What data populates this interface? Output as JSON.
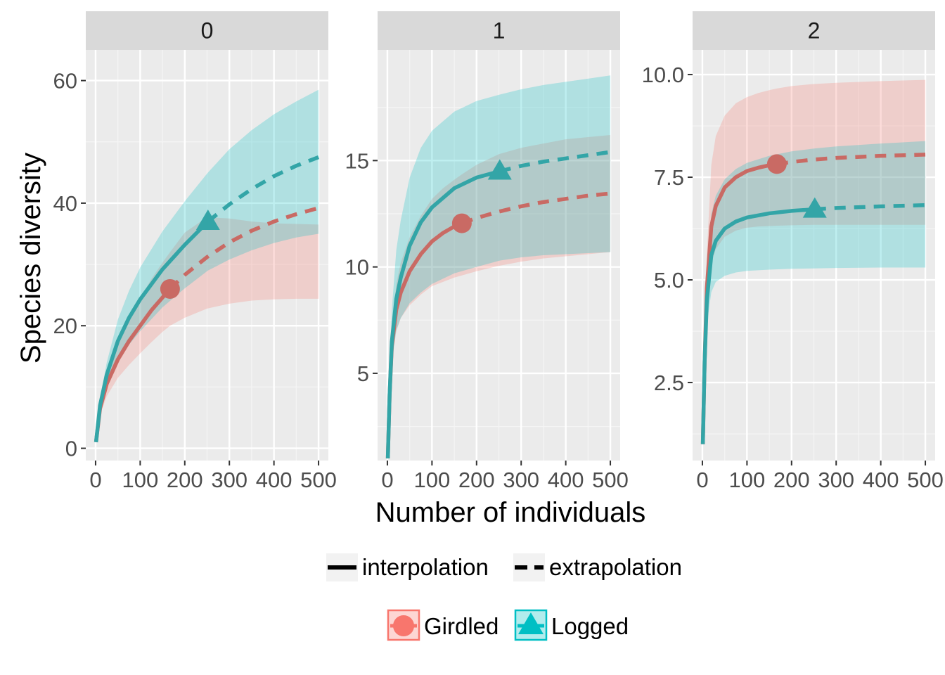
{
  "chart_data": {
    "type": "line",
    "facet_by": "order q",
    "xlabel": "Number of individuals",
    "ylabel": "Species diversity",
    "x_ticks": [
      0,
      100,
      200,
      300,
      400,
      500
    ],
    "x_tick_labels": [
      "0",
      "100",
      "200",
      "300",
      "400",
      "500"
    ],
    "xlim": [
      -22,
      522
    ],
    "grid": true,
    "legend_placement": "bottom",
    "line_legend": {
      "items": [
        {
          "key": "interpolation",
          "label": "interpolation",
          "linetype": "solid"
        },
        {
          "key": "extrapolation",
          "label": "extrapolation",
          "linetype": "dashed"
        }
      ]
    },
    "group_legend": {
      "items": [
        {
          "key": "girdled",
          "label": "Girdled",
          "shape": "circle",
          "color": "#F8766D"
        },
        {
          "key": "logged",
          "label": "Logged",
          "shape": "triangle",
          "color": "#00BFC4"
        }
      ]
    },
    "observed_sample_size": {
      "girdled": 167,
      "logged": 252
    },
    "panels": [
      {
        "strip": "0",
        "ylim": [
          -2,
          65
        ],
        "y_ticks": [
          0,
          20,
          40,
          60
        ],
        "y_tick_labels": [
          "0",
          "20",
          "40",
          "60"
        ],
        "series": [
          {
            "name": "Girdled",
            "x": [
              1,
              10,
              25,
              50,
              75,
              100,
              125,
              150,
              167,
              200,
              250,
              300,
              350,
              400,
              450,
              500
            ],
            "y": [
              1,
              6.5,
              10.5,
              14.5,
              17.5,
              20,
              22.5,
              24.6,
              26,
              28.3,
              31.2,
              33.6,
              35.5,
              37,
              38.2,
              39.2
            ],
            "lower": [
              1,
              5.5,
              8.5,
              11.5,
              13.6,
              15.5,
              17.3,
              19,
              20,
              21.3,
              22.8,
              23.6,
              24.1,
              24.3,
              24.4,
              24.4
            ],
            "upper": [
              1,
              7.8,
              12.5,
              17.3,
              21.2,
              24.5,
              27.6,
              30.3,
              32,
              35.2,
              37.7,
              37.5,
              37,
              36.7,
              36.6,
              36.5
            ]
          },
          {
            "name": "Logged",
            "x": [
              1,
              10,
              25,
              50,
              75,
              100,
              150,
              200,
              252,
              300,
              350,
              400,
              450,
              500
            ],
            "y": [
              1,
              7,
              12,
              17.5,
              21.3,
              24.3,
              29.2,
              33.2,
              37,
              39.8,
              42.3,
              44.4,
              46.1,
              47.5
            ],
            "lower": [
              1,
              6,
              10,
              14,
              16.9,
              19.1,
              23,
              26.1,
              29,
              30.8,
              32.3,
              33.5,
              34.4,
              35
            ],
            "upper": [
              1,
              8,
              14,
              21,
              25.7,
              29.5,
              35.4,
              40.3,
              45,
              48.8,
              51.9,
              54.5,
              56.6,
              58.5
            ]
          }
        ]
      },
      {
        "strip": "1",
        "ylim": [
          0.9,
          20.2
        ],
        "y_ticks": [
          5,
          10,
          15
        ],
        "y_tick_labels": [
          "5",
          "10",
          "15"
        ],
        "series": [
          {
            "name": "Girdled",
            "x": [
              1,
              5,
              10,
              20,
              30,
              50,
              75,
              100,
              125,
              150,
              167,
              200,
              250,
              300,
              350,
              400,
              450,
              500
            ],
            "y": [
              1,
              4,
              6.3,
              8,
              8.8,
              9.8,
              10.6,
              11.2,
              11.6,
              11.9,
              12.05,
              12.3,
              12.6,
              12.85,
              13.05,
              13.2,
              13.35,
              13.45
            ],
            "lower": [
              1,
              3.6,
              5.7,
              7,
              7.6,
              8.2,
              8.7,
              9.1,
              9.3,
              9.5,
              9.6,
              9.8,
              10.05,
              10.25,
              10.4,
              10.5,
              10.6,
              10.7
            ],
            "upper": [
              1,
              4.4,
              7,
              9.2,
              10.2,
              11.4,
              12.4,
              13.2,
              13.7,
              14.1,
              14.35,
              14.8,
              15.3,
              15.6,
              15.8,
              16,
              16.1,
              16.2
            ]
          },
          {
            "name": "Logged",
            "x": [
              1,
              5,
              10,
              20,
              30,
              50,
              75,
              100,
              150,
              200,
              252,
              300,
              350,
              400,
              450,
              500
            ],
            "y": [
              1,
              4,
              6.5,
              8.5,
              9.5,
              11,
              12.1,
              12.8,
              13.7,
              14.2,
              14.5,
              14.75,
              14.95,
              15.1,
              15.25,
              15.4
            ],
            "lower": [
              1,
              3.5,
              5.5,
              7,
              7.6,
              8.3,
              8.8,
              9.2,
              9.7,
              10,
              10.3,
              10.45,
              10.55,
              10.6,
              10.65,
              10.7
            ],
            "upper": [
              1,
              4.8,
              8,
              10.8,
              12.2,
              14.2,
              15.6,
              16.4,
              17.3,
              17.8,
              18.1,
              18.35,
              18.55,
              18.7,
              18.85,
              19
            ]
          }
        ]
      },
      {
        "strip": "2",
        "ylim": [
          0.6,
          10.6
        ],
        "y_ticks": [
          2.5,
          5.0,
          7.5,
          10.0
        ],
        "y_tick_labels": [
          "2.5",
          "5.0",
          "7.5",
          "10.0"
        ],
        "series": [
          {
            "name": "Girdled",
            "x": [
              1,
              5,
              10,
              20,
              30,
              50,
              75,
              100,
              125,
              150,
              167,
              200,
              250,
              300,
              400,
              500
            ],
            "y": [
              1,
              3,
              4.8,
              6.3,
              6.8,
              7.25,
              7.5,
              7.65,
              7.73,
              7.79,
              7.82,
              7.87,
              7.93,
              7.97,
              8.02,
              8.05
            ],
            "lower": [
              1,
              2.8,
              4.3,
              5.4,
              5.75,
              6.05,
              6.2,
              6.27,
              6.3,
              6.31,
              6.32,
              6.33,
              6.34,
              6.34,
              6.34,
              6.34
            ],
            "upper": [
              1,
              3.3,
              5.6,
              7.8,
              8.5,
              9,
              9.3,
              9.45,
              9.55,
              9.62,
              9.66,
              9.72,
              9.77,
              9.8,
              9.84,
              9.87
            ]
          },
          {
            "name": "Logged",
            "x": [
              1,
              5,
              10,
              20,
              30,
              50,
              75,
              100,
              150,
              200,
              252,
              300,
              400,
              500
            ],
            "y": [
              1,
              3,
              4.5,
              5.6,
              5.95,
              6.25,
              6.42,
              6.52,
              6.62,
              6.68,
              6.72,
              6.75,
              6.79,
              6.82
            ],
            "lower": [
              1,
              2.7,
              3.9,
              4.7,
              4.95,
              5.1,
              5.18,
              5.22,
              5.25,
              5.27,
              5.28,
              5.29,
              5.3,
              5.3
            ],
            "upper": [
              1,
              3.3,
              5.2,
              6.6,
              7.05,
              7.45,
              7.7,
              7.85,
              8.02,
              8.13,
              8.2,
              8.25,
              8.32,
              8.38
            ]
          }
        ]
      }
    ]
  }
}
